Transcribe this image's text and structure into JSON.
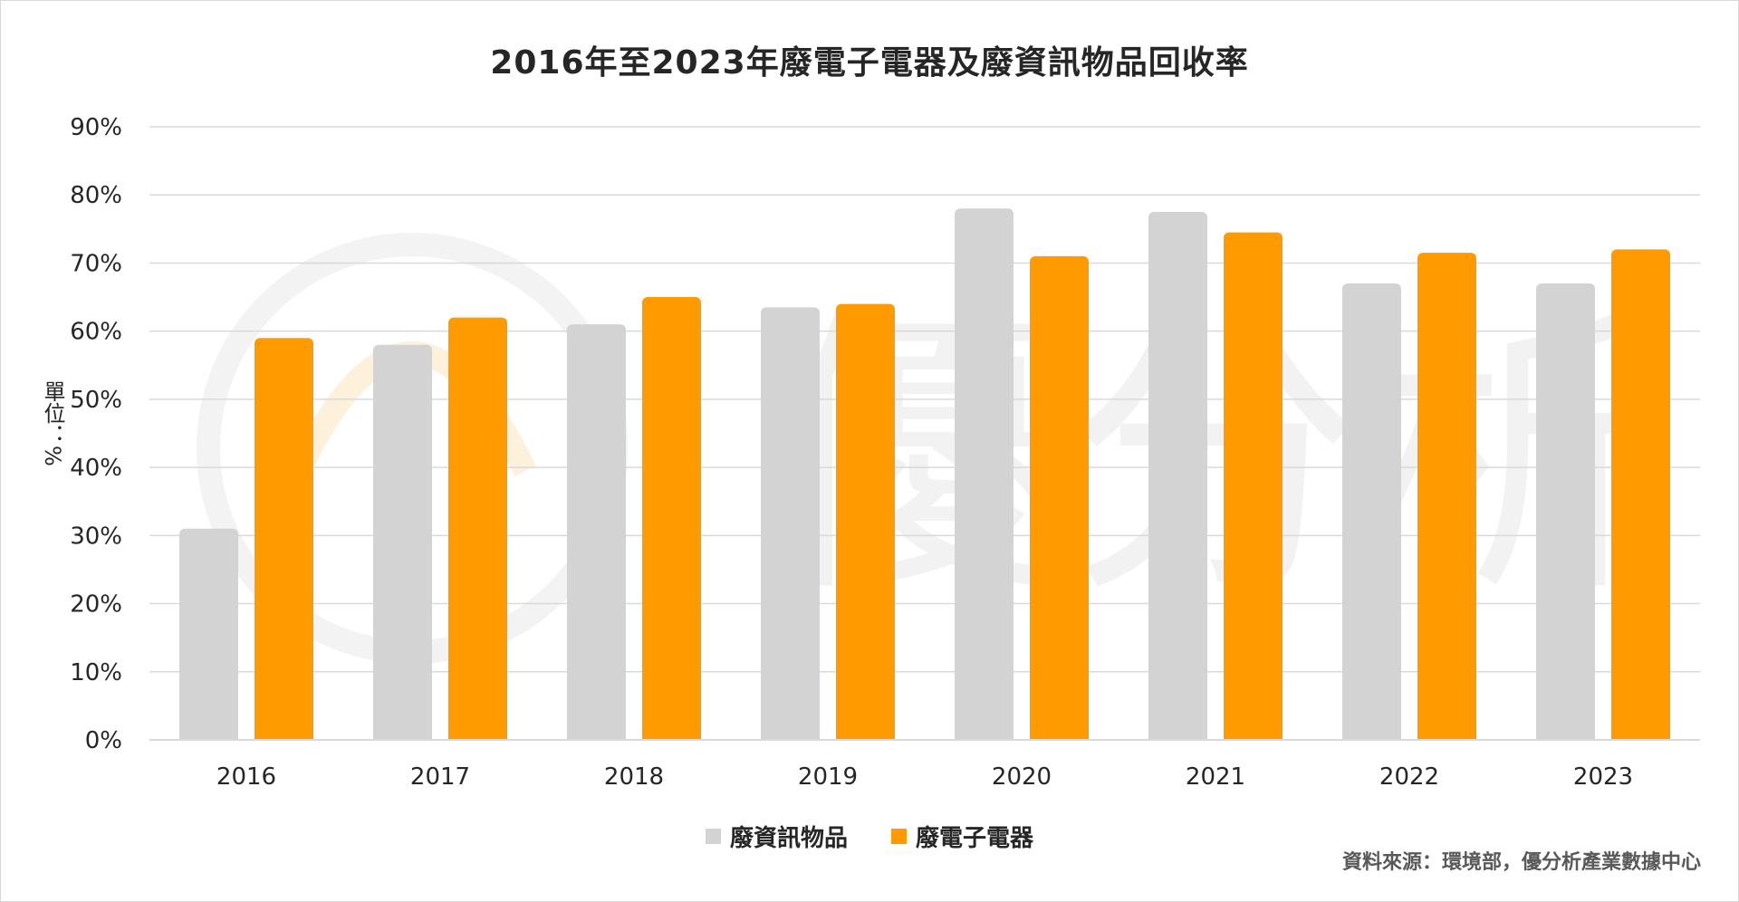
{
  "colors": {
    "series_gray": "#d3d3d3",
    "series_orange": "#ff9a00",
    "grid": "#d9d9d9",
    "text": "#262626",
    "source_text": "#595959"
  },
  "watermark_text": "優分析",
  "chart_data": {
    "type": "bar",
    "title": "2016年至2023年廢電子電器及廢資訊物品回收率",
    "ylabel": "單位：%",
    "xlabel": "",
    "categories": [
      "2016",
      "2017",
      "2018",
      "2019",
      "2020",
      "2021",
      "2022",
      "2023"
    ],
    "series": [
      {
        "name": "廢資訊物品",
        "color": "#d3d3d3",
        "values": [
          31,
          58,
          61,
          63.5,
          78,
          77.5,
          67,
          67
        ]
      },
      {
        "name": "廢電子電器",
        "color": "#ff9a00",
        "values": [
          59,
          62,
          65,
          64,
          71,
          74.5,
          71.5,
          72
        ]
      }
    ],
    "ylim": [
      0,
      90
    ],
    "yticks": [
      "0%",
      "10%",
      "20%",
      "30%",
      "40%",
      "50%",
      "60%",
      "70%",
      "80%",
      "90%"
    ],
    "grid": true,
    "legend_position": "bottom"
  },
  "source": "資料來源：環境部，優分析產業數據中心"
}
